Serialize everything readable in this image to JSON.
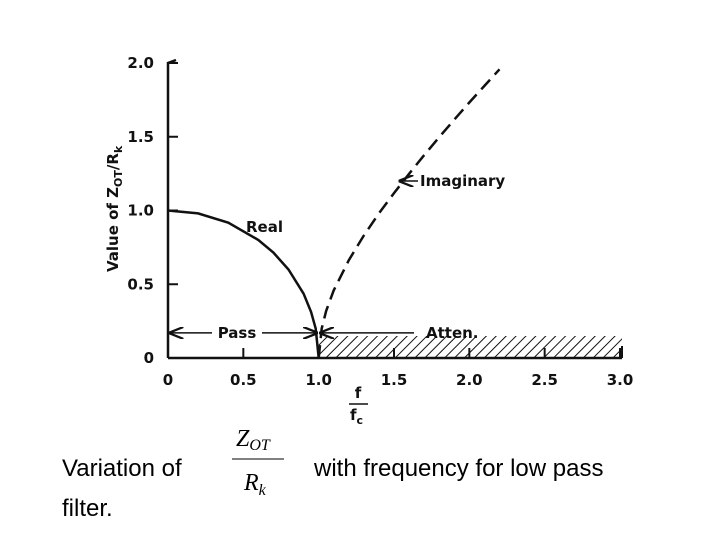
{
  "chart_data": {
    "type": "line",
    "ylabel": [
      "Value of Z",
      "OT",
      "/R",
      "k"
    ],
    "xlabel": [
      "f",
      "f",
      "c"
    ],
    "x": [
      0,
      0.2,
      0.4,
      0.6,
      0.7,
      0.8,
      0.9,
      0.95,
      0.98,
      1.0,
      1.02,
      1.05,
      1.1,
      1.2,
      1.3,
      1.4,
      1.5,
      1.6,
      1.7,
      1.8,
      1.9,
      2.0,
      2.1,
      2.2
    ],
    "series": [
      {
        "name": "Real",
        "color": "#111111",
        "dashed": false,
        "values": [
          1,
          0.98,
          0.917,
          0.8,
          0.714,
          0.6,
          0.436,
          0.312,
          0.199,
          0,
          null,
          null,
          null,
          null,
          null,
          null,
          null,
          null,
          null,
          null,
          null,
          null,
          null,
          null
        ]
      },
      {
        "name": "Imaginary",
        "color": "#111111",
        "dashed": true,
        "values": [
          null,
          null,
          null,
          null,
          null,
          null,
          null,
          null,
          null,
          0,
          0.2,
          0.32,
          0.458,
          0.663,
          0.831,
          0.98,
          1.118,
          1.249,
          1.375,
          1.497,
          1.616,
          1.732,
          1.845,
          1.957
        ]
      }
    ],
    "annotations": [
      "Pass",
      "Atten."
    ],
    "xlim": [
      0,
      3
    ],
    "ylim": [
      0,
      2
    ],
    "xticks": [
      0,
      0.5,
      {
        "value": 1,
        "label": "1.0"
      },
      1.5,
      {
        "value": 2,
        "label": "2.0"
      },
      2.5,
      {
        "value": 3,
        "label": "3.0"
      }
    ],
    "yticks": [
      0,
      0.5,
      {
        "value": 1,
        "label": "1.0"
      },
      1.5,
      {
        "value": 2,
        "label": "2.0"
      }
    ],
    "grid": false
  },
  "caption": {
    "before": "Variation of",
    "numerator": [
      "Z",
      "OT"
    ],
    "denominator": [
      "R",
      "k"
    ],
    "after": "with frequency for low pass",
    "line2": "filter."
  }
}
